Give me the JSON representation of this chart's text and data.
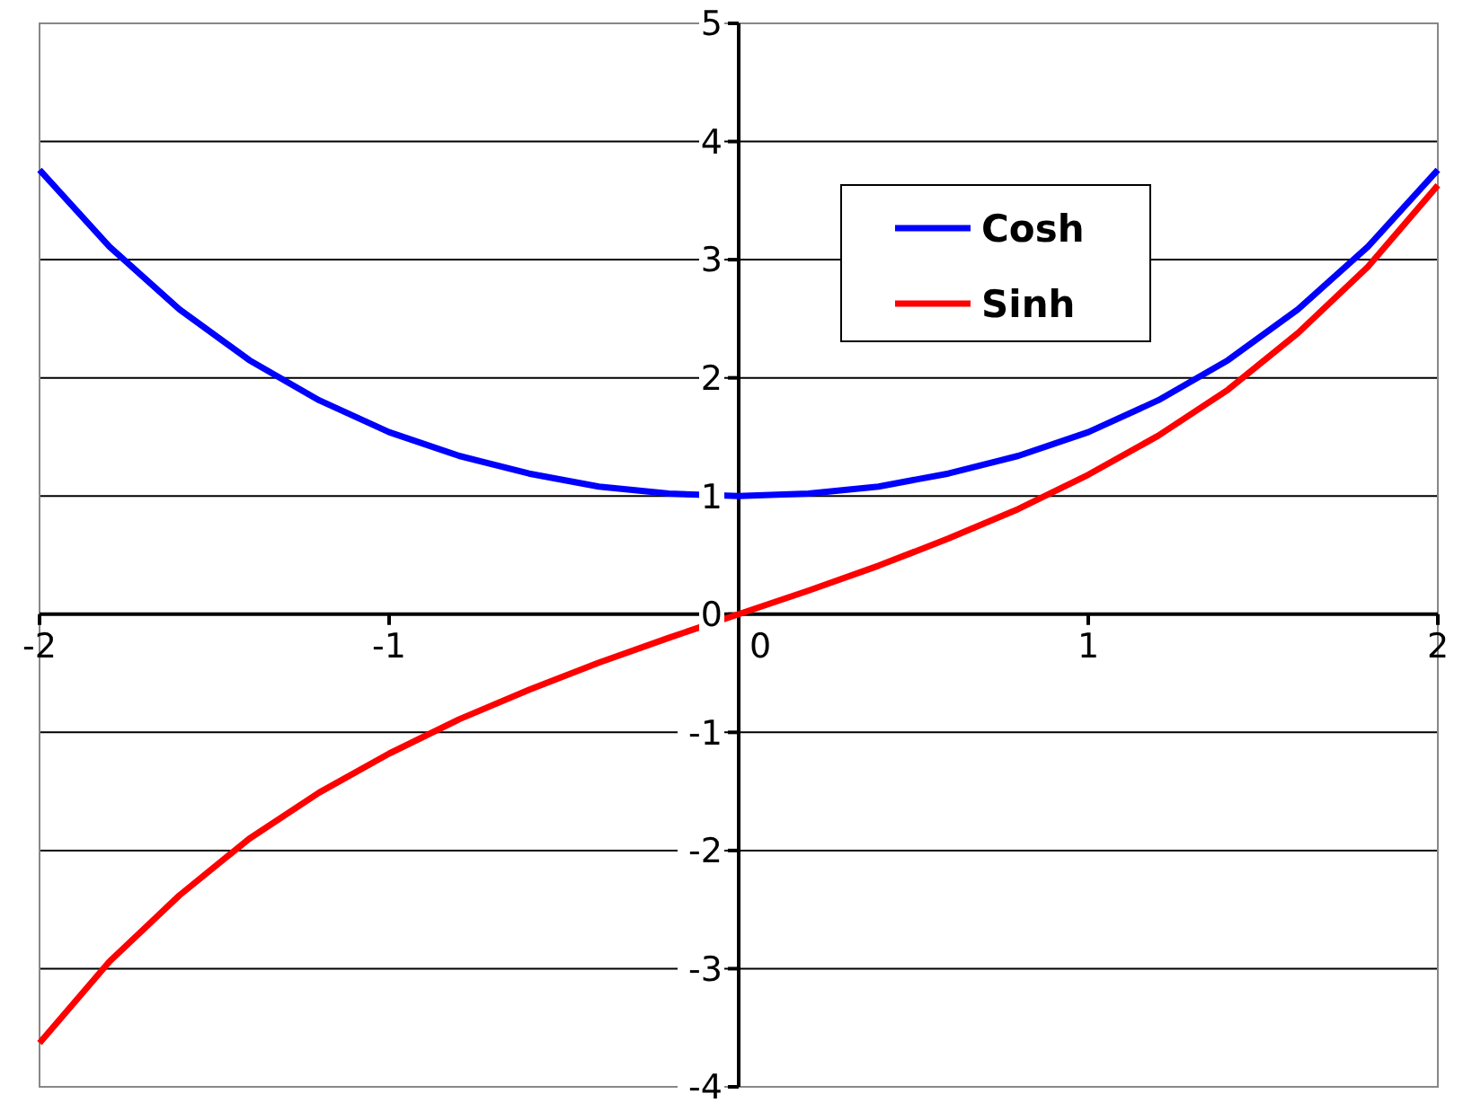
{
  "chart_data": {
    "type": "line",
    "x": [
      -2,
      -1.8,
      -1.6,
      -1.4,
      -1.2,
      -1,
      -0.8,
      -0.6,
      -0.4,
      -0.2,
      0,
      0.2,
      0.4,
      0.6,
      0.8,
      1,
      1.2,
      1.4,
      1.6,
      1.8,
      2
    ],
    "series": [
      {
        "name": "Cosh",
        "color": "#0000ff",
        "values": [
          3.76,
          3.11,
          2.58,
          2.15,
          1.81,
          1.54,
          1.34,
          1.19,
          1.08,
          1.02,
          1,
          1.02,
          1.08,
          1.19,
          1.34,
          1.54,
          1.81,
          2.15,
          2.58,
          3.11,
          3.76
        ]
      },
      {
        "name": "Sinh",
        "color": "#ff0000",
        "values": [
          -3.63,
          -2.94,
          -2.38,
          -1.9,
          -1.51,
          -1.18,
          -0.89,
          -0.64,
          -0.41,
          -0.2,
          0,
          0.2,
          0.41,
          0.64,
          0.89,
          1.18,
          1.51,
          1.9,
          2.38,
          2.94,
          3.63
        ]
      }
    ],
    "xlim": [
      -2,
      2
    ],
    "xticks": [
      -2,
      -1,
      0,
      1,
      2
    ],
    "ylim": [
      -4,
      5
    ],
    "yticks": [
      -4,
      -3,
      -2,
      -1,
      0,
      1,
      2,
      3,
      4,
      5
    ],
    "grid": "y",
    "legend": "top right",
    "marker": "none",
    "line_style": "solid"
  }
}
